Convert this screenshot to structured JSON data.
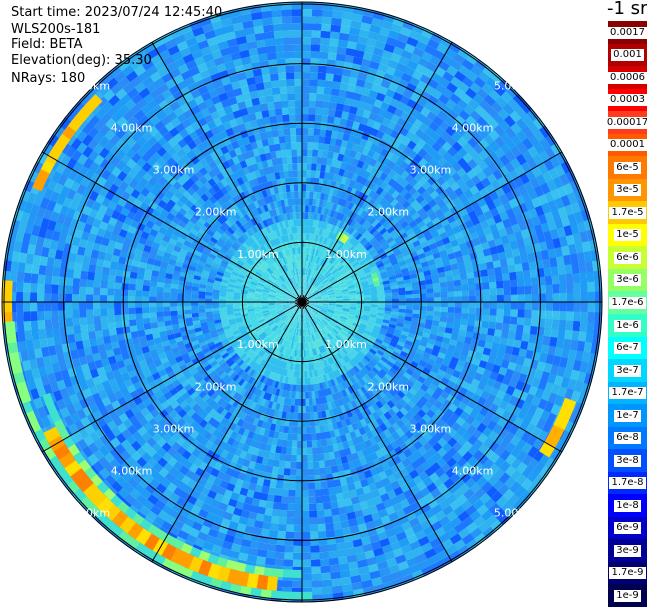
{
  "header": {
    "start_time": "Start time: 2023/07/24 12:45:40",
    "instrument": "WLS200s-181",
    "field": "Field: BETA",
    "elevation": "Elevation(deg): 35.30",
    "nrays": "NRays: 180"
  },
  "colorbar": {
    "unit": "-1 sr",
    "levels": [
      {
        "label": "0.0017",
        "color": "#8b0000"
      },
      {
        "label": "0.001",
        "color": "#b00000"
      },
      {
        "label": "0.0006",
        "color": "#d40000"
      },
      {
        "label": "0.0003",
        "color": "#ff0000"
      },
      {
        "label": "0.00017",
        "color": "#ff3c1e"
      },
      {
        "label": "0.0001",
        "color": "#ff5a00"
      },
      {
        "label": "6e-5",
        "color": "#ff7800"
      },
      {
        "label": "3e-5",
        "color": "#ff9600"
      },
      {
        "label": "1.7e-5",
        "color": "#ffc800"
      },
      {
        "label": "1e-5",
        "color": "#ffff00"
      },
      {
        "label": "6e-6",
        "color": "#c8ff32"
      },
      {
        "label": "3e-6",
        "color": "#96ff64"
      },
      {
        "label": "1.7e-6",
        "color": "#64ffa0"
      },
      {
        "label": "1e-6",
        "color": "#32ffc8"
      },
      {
        "label": "6e-7",
        "color": "#00ffff"
      },
      {
        "label": "3e-7",
        "color": "#00d7ff"
      },
      {
        "label": "1.7e-7",
        "color": "#00b4ff"
      },
      {
        "label": "1e-7",
        "color": "#0096ff"
      },
      {
        "label": "6e-8",
        "color": "#0078ff"
      },
      {
        "label": "3e-8",
        "color": "#0050ff"
      },
      {
        "label": "1.7e-8",
        "color": "#0028ff"
      },
      {
        "label": "1e-8",
        "color": "#0000ff"
      },
      {
        "label": "6e-9",
        "color": "#0000c8"
      },
      {
        "label": "3e-9",
        "color": "#000096"
      },
      {
        "label": "1.7e-9",
        "color": "#00006e"
      },
      {
        "label": "1e-9",
        "color": "#000050"
      }
    ]
  },
  "range_rings": {
    "labels": [
      "1.00km",
      "2.00km",
      "3.00km",
      "4.00km",
      "5.00km"
    ]
  },
  "colors": {
    "background_field": "#2aa8f2",
    "ring_line": "#000000",
    "ring_label": "#ffffff"
  }
}
